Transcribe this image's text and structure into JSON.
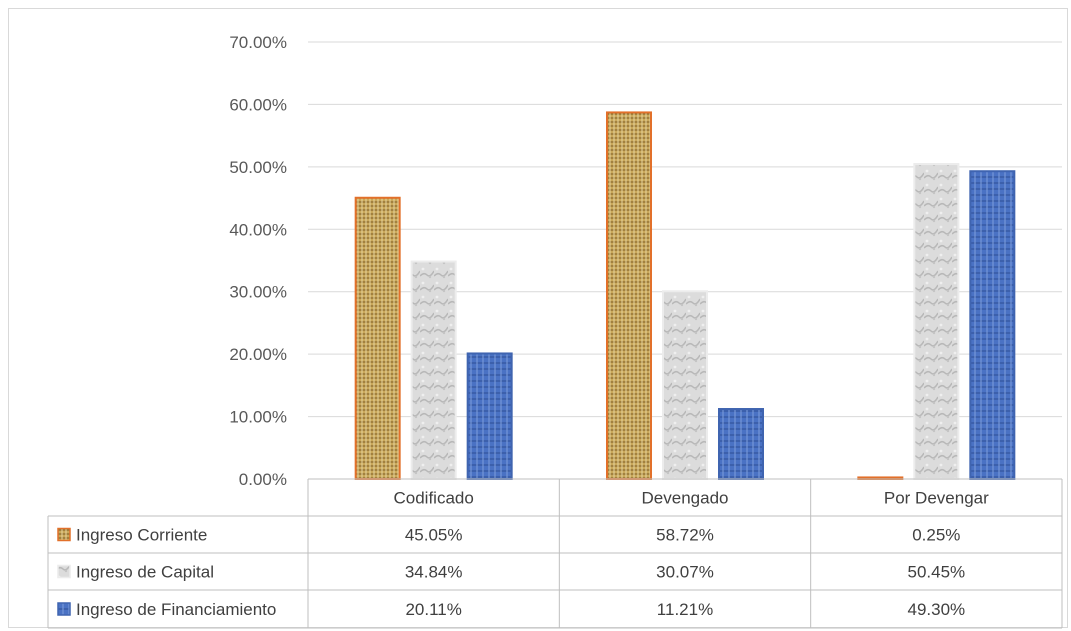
{
  "chart_data": {
    "type": "bar",
    "categories": [
      "Codificado",
      "Devengado",
      "Por Devengar"
    ],
    "series": [
      {
        "name": "Ingreso Corriente",
        "values": [
          45.05,
          58.72,
          0.25
        ],
        "labels": [
          "45.05%",
          "58.72%",
          "0.25%"
        ],
        "color": "#c9a85a",
        "border": "#e2702a"
      },
      {
        "name": "Ingreso de Capital",
        "values": [
          34.84,
          30.07,
          50.45
        ],
        "labels": [
          "34.84%",
          "30.07%",
          "50.45%"
        ],
        "color": "#d9d9d9",
        "border": "#ececec"
      },
      {
        "name": "Ingreso de Financiamiento",
        "values": [
          20.11,
          11.21,
          49.3
        ],
        "labels": [
          "20.11%",
          "11.21%",
          "49.30%"
        ],
        "color": "#4a72c4",
        "border": "#3f64b0"
      }
    ],
    "ylim": [
      0,
      70
    ],
    "ytick_labels": [
      "0.00%",
      "10.00%",
      "20.00%",
      "30.00%",
      "40.00%",
      "50.00%",
      "60.00%",
      "70.00%"
    ],
    "grid": true,
    "legend": "data-table"
  }
}
